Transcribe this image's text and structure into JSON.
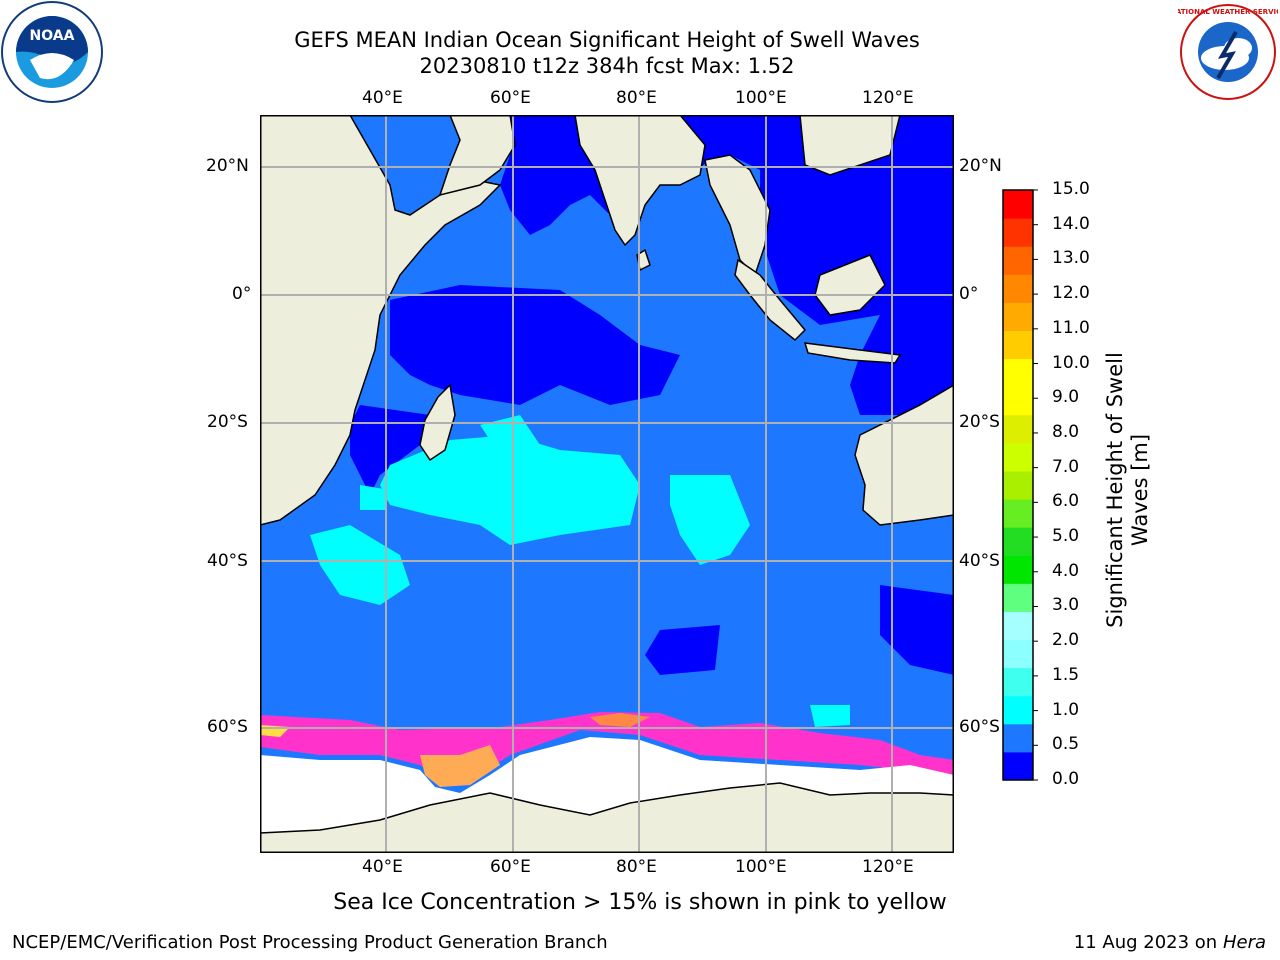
{
  "title": {
    "line1": "GEFS MEAN Indian Ocean Significant Height of Swell Waves",
    "line2": "20230810 t12z 384h fcst   Max: 1.52"
  },
  "map": {
    "lon_ticks": [
      "40°E",
      "60°E",
      "80°E",
      "100°E",
      "120°E"
    ],
    "lat_ticks": [
      "20°N",
      "0°",
      "20°S",
      "40°S",
      "60°S"
    ],
    "extent": {
      "lon_min": 20,
      "lon_max": 130,
      "lat_min": -76,
      "lat_max": 28
    },
    "gridlines": true,
    "colors": {
      "land": "#eeeedc",
      "ocean_0_0_5": "#0000ff",
      "ocean_0_5_1": "#1e78ff",
      "ocean_1_1_5": "#00ffff",
      "sea_ice": "#ff33cc",
      "ice_shelf": "#ffffff"
    }
  },
  "colorbar": {
    "title_line1": "Significant Height of Swell",
    "title_line2": "Waves [m]",
    "tick_labels": [
      "15.0",
      "14.0",
      "13.0",
      "12.0",
      "11.0",
      "10.0",
      "9.0",
      "8.0",
      "7.0",
      "6.0",
      "5.0",
      "4.0",
      "3.0",
      "2.0",
      "1.5",
      "1.0",
      "0.5",
      "0.0"
    ],
    "colors_bottom_to_top": [
      "#0000ff",
      "#1e78ff",
      "#00ffff",
      "#3fffef",
      "#8cffff",
      "#a5ffff",
      "#5fff7f",
      "#00e600",
      "#22dd22",
      "#66ee22",
      "#aaee00",
      "#ccff00",
      "#ddee00",
      "#ffff00",
      "#ffff00",
      "#ffcc00",
      "#ffaa00",
      "#ff8800",
      "#ff6600",
      "#ff3300",
      "#ff0000"
    ]
  },
  "logos": {
    "left_label": "NOAA",
    "right_label": "NATIONAL WEATHER SERVICE"
  },
  "caption": "Sea Ice Concentration > 15% is shown in pink to yellow",
  "credit_left": "NCEP/EMC/Verification Post Processing Product Generation Branch",
  "credit_right_date": "11 Aug 2023 on",
  "credit_right_machine": "Hera"
}
